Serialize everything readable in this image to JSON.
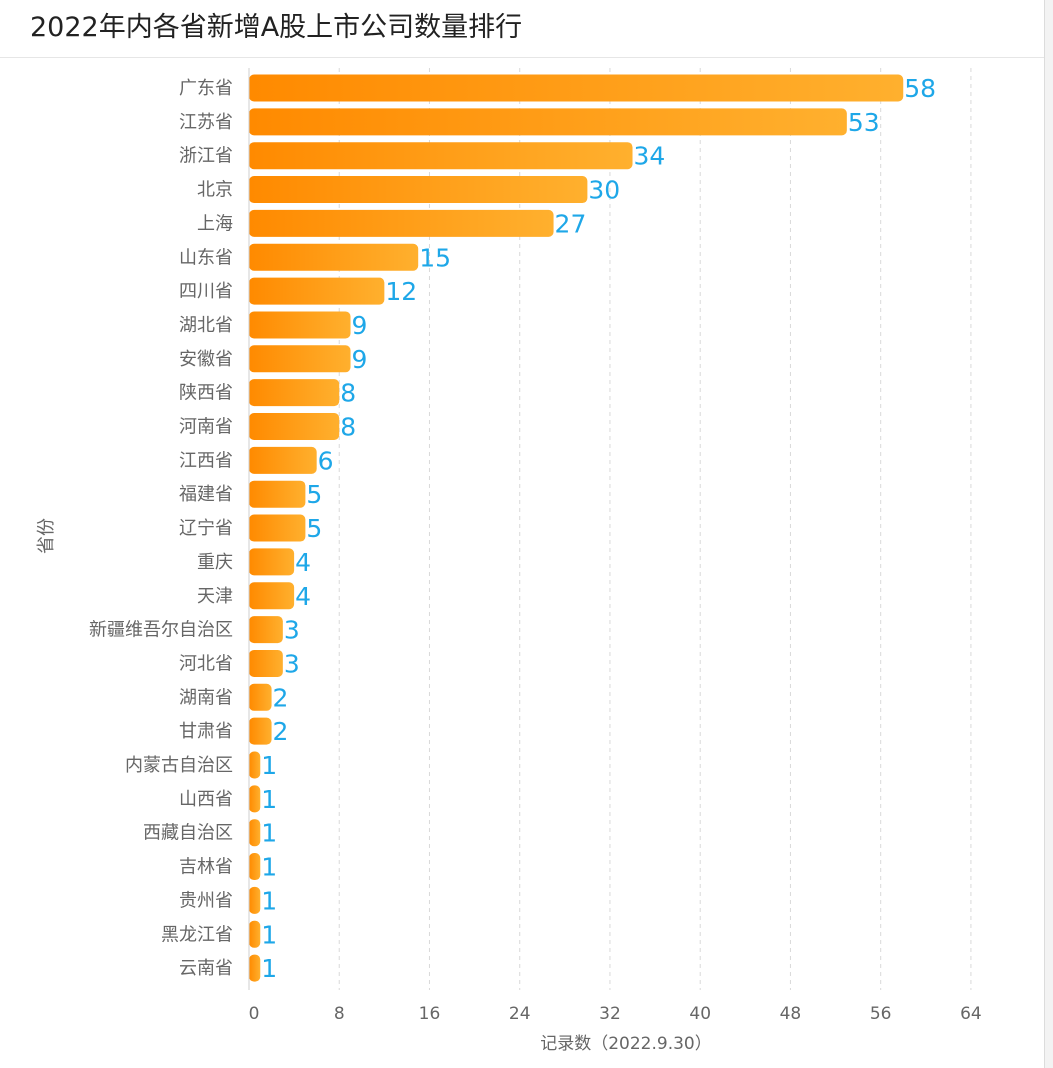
{
  "header": {
    "title": "2022年内各省新增A股上市公司数量排行"
  },
  "chart_data": {
    "type": "bar",
    "orientation": "horizontal",
    "title": "2022年内各省新增A股上市公司数量排行",
    "ylabel": "省份",
    "xlabel": "记录数（2022.9.30）",
    "xlim": [
      0,
      64
    ],
    "xticks": [
      0,
      8,
      16,
      24,
      32,
      40,
      48,
      56,
      64
    ],
    "grid": "vertical-dashed",
    "categories": [
      "广东省",
      "江苏省",
      "浙江省",
      "北京",
      "上海",
      "山东省",
      "四川省",
      "湖北省",
      "安徽省",
      "陕西省",
      "河南省",
      "江西省",
      "福建省",
      "辽宁省",
      "重庆",
      "天津",
      "新疆维吾尔自治区",
      "河北省",
      "湖南省",
      "甘肃省",
      "内蒙古自治区",
      "山西省",
      "西藏自治区",
      "吉林省",
      "贵州省",
      "黑龙江省",
      "云南省"
    ],
    "values": [
      58,
      53,
      34,
      30,
      27,
      15,
      12,
      9,
      9,
      8,
      8,
      6,
      5,
      5,
      4,
      4,
      3,
      3,
      2,
      2,
      1,
      1,
      1,
      1,
      1,
      1,
      1
    ],
    "colors": {
      "bar_start": "#ff8a00",
      "bar_end": "#ffb02e",
      "label": "#1ea7e8",
      "axis_text": "#666666"
    }
  }
}
